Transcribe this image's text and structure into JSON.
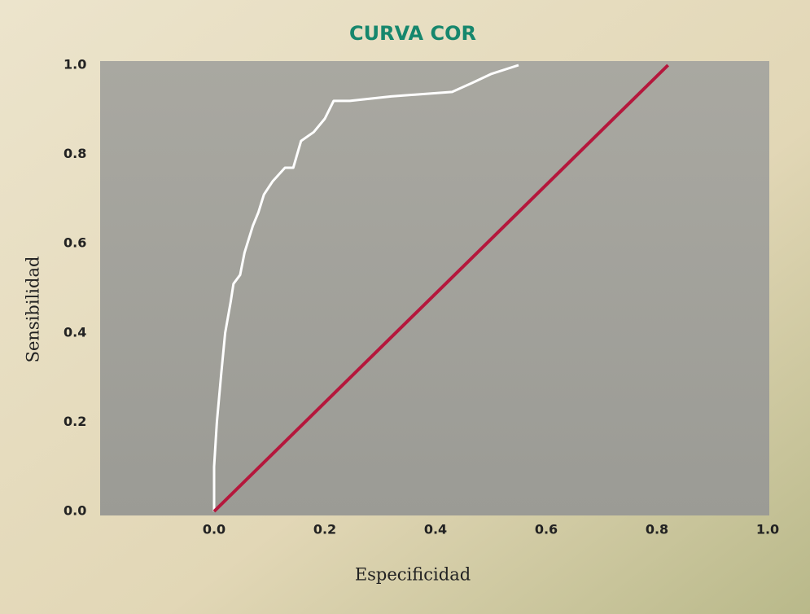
{
  "chart_data": {
    "type": "line",
    "title": "CURVA COR",
    "x_label": "Especificidad",
    "y_label": "Sensibilidad",
    "xlim": [
      -0.2,
      1.0
    ],
    "ylim": [
      0,
      1.0
    ],
    "xticks": [
      {
        "value": 0,
        "label": "0.0"
      },
      0.2,
      0.4,
      0.6,
      0.8,
      {
        "value": 1,
        "label": "1.0"
      }
    ],
    "yticks": [
      {
        "value": 0,
        "label": "0.0"
      },
      0.2,
      0.4,
      0.6,
      0.8,
      {
        "value": 1,
        "label": "1.0"
      }
    ],
    "series": [
      {
        "color": "#ffffff",
        "x": [
          0,
          0,
          0.005,
          0.013,
          0.02,
          0.03,
          0.035,
          0.047,
          0.055,
          0.07,
          0.08,
          0.09,
          0.106,
          0.128,
          0.143,
          0.157,
          0.18,
          0.2,
          0.216,
          0.245,
          0.32,
          0.43,
          0.466,
          0.5,
          0.55
        ],
        "values": [
          0,
          0.1,
          0.2,
          0.31,
          0.4,
          0.47,
          0.51,
          0.53,
          0.58,
          0.64,
          0.67,
          0.71,
          0.74,
          0.77,
          0.77,
          0.83,
          0.85,
          0.88,
          0.92,
          0.92,
          0.93,
          0.94,
          0.96,
          0.98,
          1.0
        ]
      },
      {
        "color": "#b5173c",
        "x": [
          0,
          0.82
        ],
        "values": [
          0,
          1.0
        ]
      }
    ]
  }
}
